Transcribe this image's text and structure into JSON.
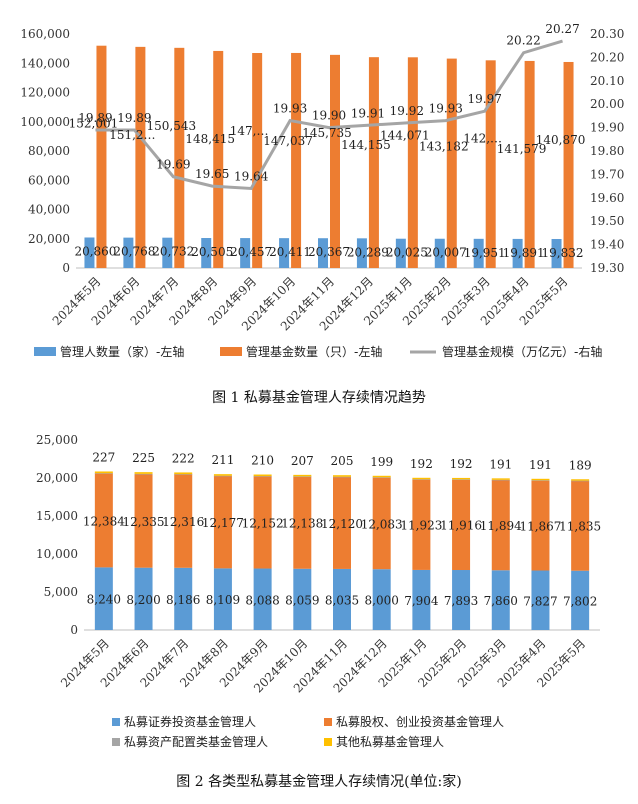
{
  "chart_data": [
    {
      "type": "bar",
      "categories": [
        "2024年5月",
        "2024年6月",
        "2024年7月",
        "2024年8月",
        "2024年9月",
        "2024年10月",
        "2024年11月",
        "2024年12月",
        "2025年1月",
        "2025年2月",
        "2025年3月",
        "2025年4月",
        "2025年5月"
      ],
      "series": [
        {
          "name": "管理人数量（家）-左轴",
          "color": "#5B9BD5",
          "axis": "left",
          "values": [
            20860,
            20768,
            20732,
            20505,
            20457,
            20411,
            20367,
            20289,
            20025,
            20007,
            19951,
            19891,
            19832
          ],
          "labels": [
            "20,860",
            "20,768",
            "20,732",
            "20,505",
            "20,457",
            "20,411",
            "20,367",
            "20,289",
            "20,025",
            "20,007",
            "19,951",
            "19,891",
            "19,832"
          ]
        },
        {
          "name": "管理基金数量（只）-左轴",
          "color": "#ED7D31",
          "axis": "left",
          "values": [
            152001,
            151200,
            150543,
            148415,
            147000,
            147037,
            145735,
            144155,
            144071,
            143182,
            142000,
            141579,
            140870
          ],
          "labels": [
            "152,001",
            "151,2…",
            "150,543",
            "148,415",
            "147,…",
            "147,037",
            "145,735",
            "144,155",
            "144,071",
            "143,182",
            "142,…",
            "141,579",
            "140,870"
          ]
        },
        {
          "name": "管理基金规模（万亿元）-右轴",
          "color": "#A5A5A5",
          "axis": "right",
          "line": true,
          "values": [
            19.89,
            19.89,
            19.69,
            19.65,
            19.64,
            19.93,
            19.9,
            19.91,
            19.92,
            19.93,
            19.97,
            20.22,
            20.27
          ],
          "labels": [
            "19.89",
            "19.89",
            "19.69",
            "19.65",
            "19.64",
            "19.93",
            "19.90",
            "19.91",
            "19.92",
            "19.93",
            "19.97",
            "20.22",
            "20.27"
          ]
        }
      ],
      "ylim_left": [
        0,
        160000
      ],
      "yticks_left": [
        "0",
        "20,000",
        "40,000",
        "60,000",
        "80,000",
        "100,000",
        "120,000",
        "140,000",
        "160,000"
      ],
      "ylim_right": [
        19.3,
        20.3
      ],
      "yticks_right": [
        "19.30",
        "19.40",
        "19.50",
        "19.60",
        "19.70",
        "19.80",
        "19.90",
        "20.00",
        "20.10",
        "20.20",
        "20.30"
      ],
      "legend_position": "bottom",
      "caption": "图 1  私募基金管理人存续情况趋势"
    },
    {
      "type": "bar",
      "stacked": true,
      "categories": [
        "2024年5月",
        "2024年6月",
        "2024年7月",
        "2024年8月",
        "2024年9月",
        "2024年10月",
        "2024年11月",
        "2024年12月",
        "2025年1月",
        "2025年2月",
        "2025年3月",
        "2025年4月",
        "2025年5月"
      ],
      "series": [
        {
          "name": "私募证券投资基金管理人",
          "color": "#5B9BD5",
          "values": [
            8240,
            8200,
            8186,
            8109,
            8088,
            8059,
            8035,
            8000,
            7904,
            7893,
            7860,
            7827,
            7802
          ],
          "labels": [
            "8,240",
            "8,200",
            "8,186",
            "8,109",
            "8,088",
            "8,059",
            "8,035",
            "8,000",
            "7,904",
            "7,893",
            "7,860",
            "7,827",
            "7,802"
          ]
        },
        {
          "name": "私募股权、创业投资基金管理人",
          "color": "#ED7D31",
          "values": [
            12384,
            12335,
            12316,
            12177,
            12152,
            12138,
            12120,
            12083,
            11923,
            11916,
            11894,
            11867,
            11835
          ],
          "labels": [
            "12,384",
            "12,335",
            "12,316",
            "12,177",
            "12,152",
            "12,138",
            "12,120",
            "12,083",
            "11,923",
            "11,916",
            "11,894",
            "11,867",
            "11,835"
          ]
        },
        {
          "name": "私募资产配置类基金管理人",
          "color": "#A5A5A5",
          "values": [
            9,
            9,
            9,
            9,
            9,
            9,
            9,
            9,
            9,
            9,
            9,
            9,
            9
          ]
        },
        {
          "name": "其他私募基金管理人",
          "color": "#FFC000",
          "values": [
            227,
            225,
            222,
            211,
            210,
            207,
            205,
            199,
            192,
            192,
            191,
            191,
            189
          ],
          "labels": [
            "227",
            "225",
            "222",
            "211",
            "210",
            "207",
            "205",
            "199",
            "192",
            "192",
            "191",
            "191",
            "189"
          ]
        }
      ],
      "ylim": [
        0,
        25000
      ],
      "yticks": [
        "0",
        "5,000",
        "10,000",
        "15,000",
        "20,000",
        "25,000"
      ],
      "legend_position": "bottom",
      "caption": "图 2  各类型私募基金管理人存续情况(单位:家)"
    }
  ]
}
